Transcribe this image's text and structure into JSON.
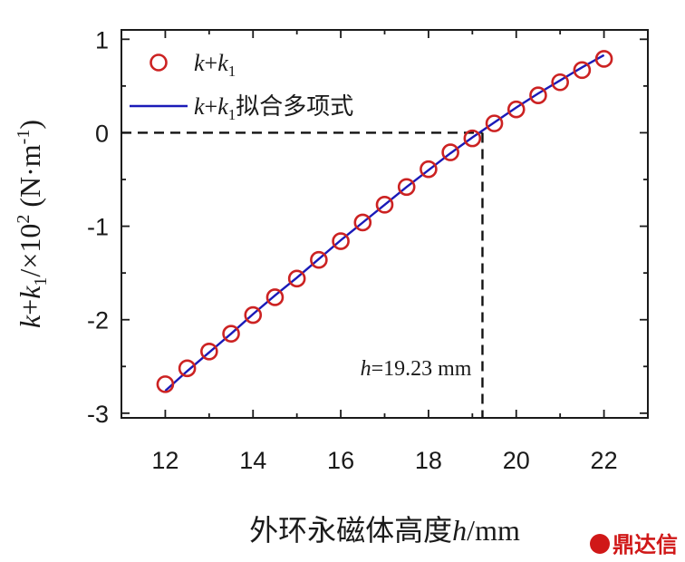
{
  "chart_data": {
    "type": "line",
    "xlabel": "外环永磁体高度h/mm",
    "ylabel": "k+k1/×10^2 (N·m^-1)",
    "xlim": [
      11,
      23
    ],
    "ylim": [
      -3.05,
      1.1
    ],
    "xticks": [
      12,
      14,
      16,
      18,
      20,
      22
    ],
    "yticks": [
      -3,
      -2,
      -1,
      0,
      1
    ],
    "x": [
      12,
      12.5,
      13,
      13.5,
      14,
      14.5,
      15,
      15.5,
      16,
      16.5,
      17,
      17.5,
      18,
      18.5,
      19,
      19.5,
      20,
      20.5,
      21,
      21.5,
      22
    ],
    "series": [
      {
        "name": "k+k1",
        "kind": "scatter",
        "marker": "circle-open",
        "color": "#cc2222",
        "values": [
          -2.69,
          -2.52,
          -2.34,
          -2.15,
          -1.95,
          -1.76,
          -1.56,
          -1.36,
          -1.16,
          -0.96,
          -0.77,
          -0.58,
          -0.39,
          -0.21,
          -0.06,
          0.1,
          0.25,
          0.4,
          0.54,
          0.67,
          0.79
        ]
      },
      {
        "name": "k+k1拟合多项式",
        "kind": "line",
        "color": "#1a1ab8",
        "values": [
          -2.76,
          -2.55,
          -2.35,
          -2.15,
          -1.94,
          -1.74,
          -1.55,
          -1.35,
          -1.15,
          -0.96,
          -0.77,
          -0.58,
          -0.4,
          -0.22,
          -0.05,
          0.11,
          0.27,
          0.42,
          0.56,
          0.7,
          0.83
        ]
      }
    ],
    "annotation": {
      "text": "h=19.23 mm",
      "x": 19.23,
      "y": 0
    },
    "legend_position": "top-left",
    "grid": false
  },
  "watermark": {
    "text": "鼎达信",
    "color": "#d01818"
  }
}
